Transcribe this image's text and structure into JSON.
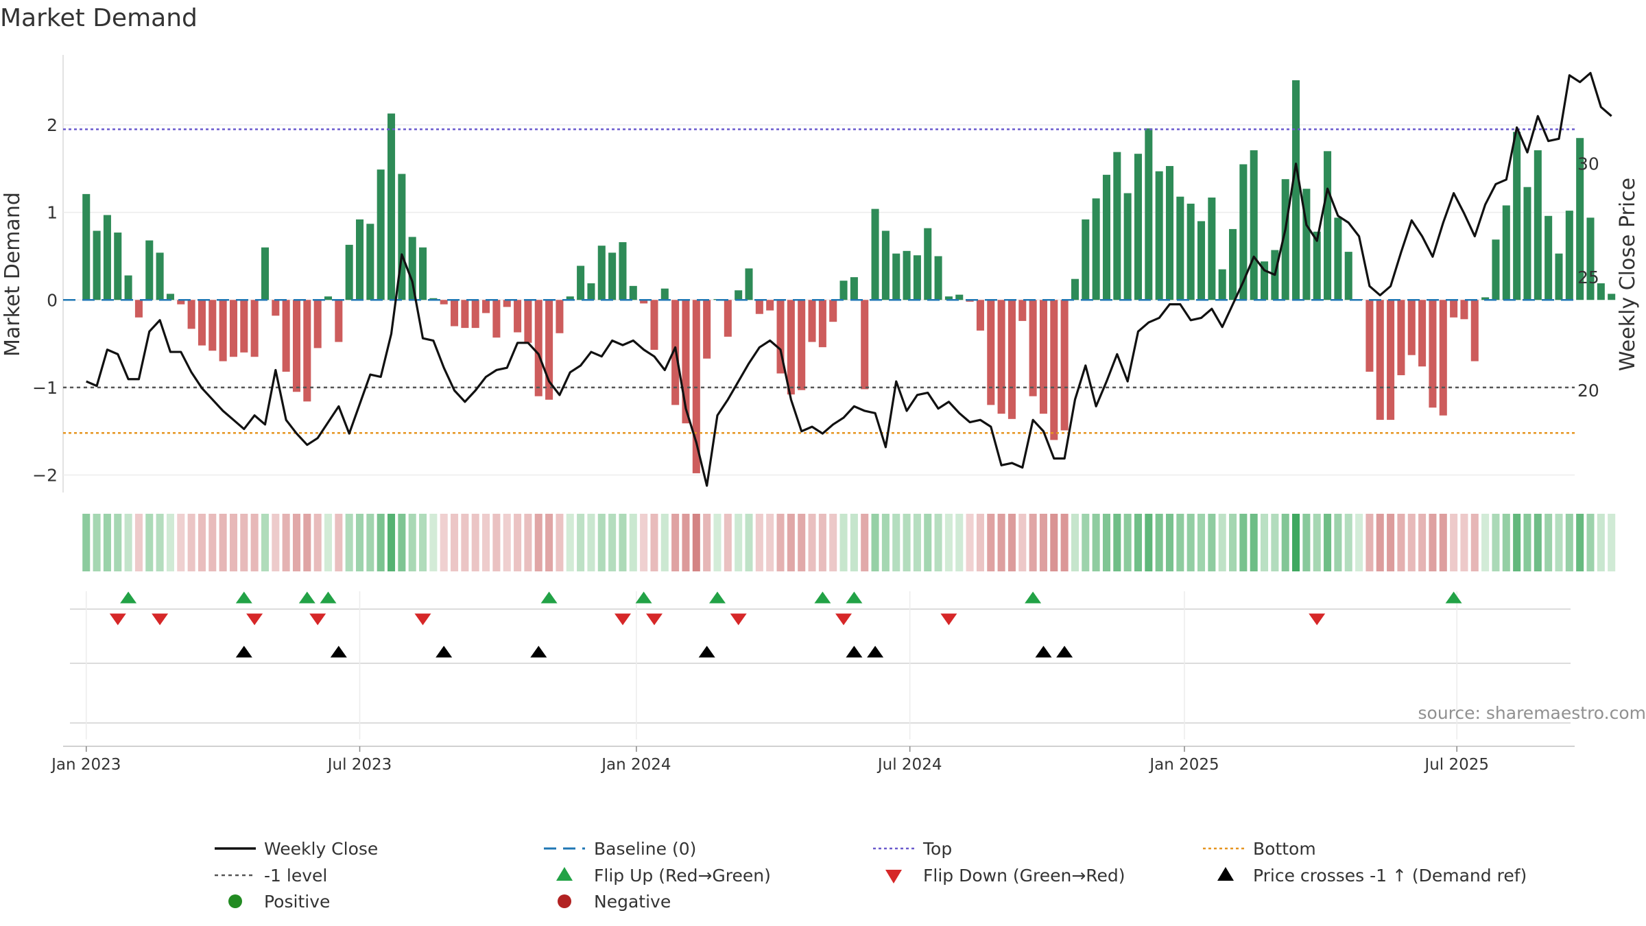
{
  "chart_data": {
    "type": "bar",
    "title": "Market Demand",
    "ylabel_left": "Market Demand",
    "ylabel_right": "Weekly Close Price",
    "ylim_left": [
      -2.2,
      2.8
    ],
    "ylim_right": [
      15.5,
      34.8
    ],
    "yticks_left": [
      {
        "v": 2,
        "label": "2"
      },
      {
        "v": 1,
        "label": "1"
      },
      {
        "v": 0,
        "label": "0"
      },
      {
        "v": -1,
        "label": "−1"
      },
      {
        "v": -2,
        "label": "−2"
      }
    ],
    "yticks_right": [
      30,
      25,
      20
    ],
    "xlim_weeks": [
      -2.2,
      141.5
    ],
    "xticks": [
      {
        "label": "Jan 2023",
        "week": 0
      },
      {
        "label": "Jul 2023",
        "week": 26
      },
      {
        "label": "Jan 2024",
        "week": 52.3
      },
      {
        "label": "Jul 2024",
        "week": 78.3
      },
      {
        "label": "Jan 2025",
        "week": 104.4
      },
      {
        "label": "Jul 2025",
        "week": 130.3
      }
    ],
    "reference_lines": {
      "top": 1.95,
      "bottom": -1.52,
      "minus_one": -1,
      "baseline": 0
    },
    "demand": [
      1.21,
      0.79,
      0.97,
      0.77,
      0.28,
      -0.2,
      0.68,
      0.54,
      0.07,
      -0.05,
      -0.33,
      -0.52,
      -0.58,
      -0.7,
      -0.65,
      -0.6,
      -0.65,
      0.6,
      -0.18,
      -0.82,
      -1.05,
      -1.16,
      -0.55,
      0.04,
      -0.48,
      0.63,
      0.92,
      0.87,
      1.49,
      2.13,
      1.44,
      0.72,
      0.6,
      0.02,
      -0.05,
      -0.3,
      -0.32,
      -0.32,
      -0.15,
      -0.43,
      -0.08,
      -0.37,
      -0.49,
      -1.1,
      -1.14,
      -0.38,
      0.04,
      0.39,
      0.19,
      0.62,
      0.54,
      0.66,
      0.16,
      -0.04,
      -0.57,
      0.13,
      -1.2,
      -1.41,
      -1.98,
      -0.67,
      0.01,
      -0.42,
      0.11,
      0.36,
      -0.16,
      -0.12,
      -0.84,
      -1.08,
      -1.03,
      -0.48,
      -0.54,
      -0.25,
      0.22,
      0.26,
      -1.02,
      1.04,
      0.79,
      0.53,
      0.56,
      0.51,
      0.82,
      0.5,
      0.04,
      0.06,
      -0.02,
      -0.35,
      -1.2,
      -1.3,
      -1.36,
      -0.24,
      -1.1,
      -1.3,
      -1.6,
      -1.49,
      0.24,
      0.92,
      1.16,
      1.43,
      1.69,
      1.22,
      1.67,
      1.96,
      1.47,
      1.53,
      1.18,
      1.1,
      0.9,
      1.17,
      0.35,
      0.81,
      1.55,
      1.71,
      0.44,
      0.57,
      1.38,
      2.51,
      1.27,
      0.78,
      1.7,
      0.94,
      0.55,
      0.01,
      -0.82,
      -1.37,
      -1.37,
      -0.86,
      -0.63,
      -0.76,
      -1.23,
      -1.32,
      -0.2,
      -0.22,
      -0.7,
      0.03,
      0.69,
      1.08,
      1.92,
      1.29,
      1.71,
      0.96,
      0.53,
      1.02,
      1.85,
      0.94,
      0.19,
      0.07
    ],
    "weekly_close": [
      20.4,
      20.2,
      21.8,
      21.6,
      20.5,
      20.5,
      22.6,
      23.1,
      21.7,
      21.7,
      20.8,
      20.1,
      19.6,
      19.1,
      18.7,
      18.3,
      18.9,
      18.5,
      20.9,
      18.7,
      18.1,
      17.6,
      17.9,
      18.6,
      19.3,
      18.1,
      19.4,
      20.7,
      20.6,
      22.5,
      26.0,
      24.8,
      22.3,
      22.2,
      21.0,
      20.0,
      19.5,
      20.0,
      20.6,
      20.9,
      21.0,
      22.1,
      22.1,
      21.6,
      20.4,
      19.8,
      20.8,
      21.1,
      21.7,
      21.5,
      22.2,
      22.0,
      22.2,
      21.8,
      21.5,
      20.9,
      21.9,
      19.2,
      17.7,
      15.8,
      18.9,
      19.6,
      20.4,
      21.2,
      21.9,
      22.2,
      21.8,
      19.6,
      18.2,
      18.4,
      18.1,
      18.5,
      18.8,
      19.3,
      19.1,
      19.0,
      17.5,
      20.4,
      19.1,
      19.8,
      19.9,
      19.2,
      19.5,
      19.0,
      18.6,
      18.7,
      18.4,
      16.7,
      16.8,
      16.6,
      18.7,
      18.2,
      17.0,
      17.0,
      19.6,
      21.1,
      19.3,
      20.4,
      21.6,
      20.4,
      22.6,
      23.0,
      23.2,
      23.8,
      23.8,
      23.1,
      23.2,
      23.6,
      22.8,
      23.8,
      24.8,
      25.9,
      25.3,
      25.1,
      27.1,
      30.0,
      27.3,
      26.6,
      28.9,
      27.7,
      27.4,
      26.8,
      24.6,
      24.2,
      24.6,
      26.1,
      27.5,
      26.8,
      25.9,
      27.4,
      28.7,
      27.8,
      26.8,
      28.2,
      29.1,
      29.3,
      31.6,
      30.5,
      32.1,
      31.0,
      31.1,
      33.9,
      33.6,
      34.0,
      32.5,
      32.1
    ],
    "flip_up_weeks": [
      4,
      15,
      21,
      23,
      44,
      53,
      60,
      70,
      73,
      90,
      130
    ],
    "flip_down_weeks": [
      3,
      7,
      16,
      22,
      32,
      51,
      54,
      62,
      72,
      82,
      117
    ],
    "price_cross_weeks": [
      15,
      24,
      34,
      43,
      59,
      73,
      75,
      91,
      93
    ],
    "colors": {
      "positive_bar": "#2e8b57",
      "negative_bar": "#cd5c5c",
      "close_line": "#111111",
      "baseline": "#1f77b4",
      "top": "#6a5acd",
      "bottom": "#e69520",
      "minus_one": "#555555",
      "flip_up": "#22a246",
      "flip_down": "#d62728",
      "price_cross": "#000000",
      "positive_dot": "#228b22",
      "negative_dot": "#b22222"
    }
  },
  "source": "source: sharemaestro.com",
  "legend": {
    "weekly_close": "Weekly Close",
    "baseline": "Baseline (0)",
    "top": "Top",
    "bottom": "Bottom",
    "minus_one": "-1 level",
    "flip_up": "Flip Up (Red→Green)",
    "flip_down": "Flip Down (Green→Red)",
    "price_cross": "Price crosses -1 ↑ (Demand ref)",
    "positive": "Positive",
    "negative": "Negative"
  }
}
